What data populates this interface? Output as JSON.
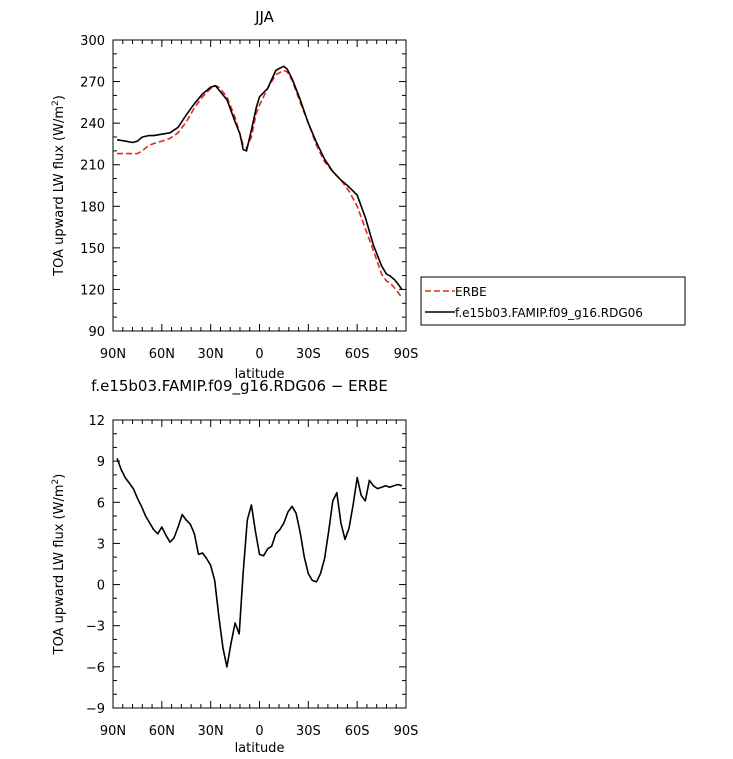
{
  "chart_data": [
    {
      "type": "line",
      "title": "JJA",
      "xlabel": "latitude",
      "ylabel_text": "TOA upward LW flux (W/m",
      "ylabel_sup": "2",
      "ylabel_close": ")",
      "xlim": [
        90,
        -90
      ],
      "ylim": [
        90,
        300
      ],
      "x_ticks": [
        90,
        60,
        30,
        0,
        -30,
        -60,
        -90
      ],
      "x_tick_labels": [
        "90N",
        "60N",
        "30N",
        "0",
        "30S",
        "60S",
        "90S"
      ],
      "y_ticks": [
        90,
        120,
        150,
        180,
        210,
        240,
        270,
        300
      ],
      "y_tick_labels": [
        "90",
        "120",
        "150",
        "180",
        "210",
        "240",
        "270",
        "300"
      ],
      "legend_position": "right",
      "series": [
        {
          "name": "ERBE",
          "color": "#e8261c",
          "dash": "dashed",
          "x": [
            87.5,
            80,
            75,
            72,
            68,
            63,
            60,
            55,
            50,
            45,
            40,
            35,
            30,
            27,
            25,
            20,
            15,
            12,
            10,
            8,
            5,
            2,
            0,
            -5,
            -10,
            -15,
            -17,
            -20,
            -25,
            -30,
            -35,
            -40,
            -45,
            -50,
            -55,
            -60,
            -65,
            -70,
            -73,
            -75,
            -78,
            -80,
            -83,
            -85,
            -87.5
          ],
          "y": [
            218,
            218,
            218,
            220,
            224,
            226,
            227,
            229,
            233,
            241,
            251,
            259,
            265,
            267,
            266,
            259,
            244,
            232,
            224,
            222,
            230,
            247,
            253,
            265,
            275,
            278,
            277,
            271,
            255,
            240,
            224,
            212,
            205,
            199,
            191,
            180,
            164,
            148,
            138,
            131,
            126,
            125,
            121,
            118,
            114
          ]
        },
        {
          "name": "f.e15b03.FAMIP.f09_g16.RDG06",
          "color": "#000000",
          "dash": "solid",
          "x": [
            87.5,
            82,
            78,
            75,
            72,
            68,
            65,
            60,
            55,
            50,
            45,
            40,
            35,
            30,
            27,
            25,
            20,
            15,
            12,
            10,
            8,
            5,
            2,
            0,
            -5,
            -10,
            -13,
            -15,
            -17,
            -20,
            -25,
            -30,
            -35,
            -40,
            -45,
            -50,
            -55,
            -60,
            -65,
            -70,
            -75,
            -78,
            -80,
            -83,
            -85,
            -87.5
          ],
          "y": [
            228,
            227,
            226,
            227,
            230,
            231,
            231,
            232,
            233,
            237,
            246,
            254,
            261,
            266,
            267,
            264,
            257,
            241,
            232,
            221,
            220,
            235,
            251,
            259,
            265,
            278,
            280,
            281,
            279,
            272,
            257,
            240,
            226,
            214,
            205,
            199,
            194,
            188,
            172,
            152,
            137,
            131,
            130,
            127,
            124,
            120
          ]
        }
      ]
    },
    {
      "type": "line",
      "title": "f.e15b03.FAMIP.f09_g16.RDG06 − ERBE",
      "xlabel": "latitude",
      "ylabel_text": "TOA upward LW flux (W/m",
      "ylabel_sup": "2",
      "ylabel_close": ")",
      "xlim": [
        90,
        -90
      ],
      "ylim": [
        -9,
        12
      ],
      "x_ticks": [
        90,
        60,
        30,
        0,
        -30,
        -60,
        -90
      ],
      "x_tick_labels": [
        "90N",
        "60N",
        "30N",
        "0",
        "30S",
        "60S",
        "90S"
      ],
      "y_ticks": [
        -9,
        -6,
        -3,
        0,
        3,
        6,
        9,
        12
      ],
      "y_tick_labels": [
        "−9",
        "−6",
        "−3",
        "0",
        "3",
        "6",
        "9",
        "12"
      ],
      "series": [
        {
          "color": "#000000",
          "dash": "solid",
          "x": [
            87.5,
            85,
            82.5,
            80,
            77.5,
            75,
            72.5,
            70,
            67.5,
            65,
            62.5,
            60,
            57.5,
            55,
            52.5,
            50,
            47.5,
            45,
            42.5,
            40,
            37.5,
            35,
            32.5,
            30,
            27.5,
            25,
            22.5,
            20,
            17.5,
            15,
            12.5,
            10,
            7.5,
            5,
            2.5,
            0,
            -2.5,
            -5,
            -7.5,
            -10,
            -12.5,
            -15,
            -17.5,
            -20,
            -22.5,
            -25,
            -27.5,
            -30,
            -32.5,
            -35,
            -37.5,
            -40,
            -42.5,
            -45,
            -47.5,
            -50,
            -52.5,
            -55,
            -57.5,
            -60,
            -62.5,
            -65,
            -67.5,
            -70,
            -72.5,
            -75,
            -77.5,
            -80,
            -82.5,
            -85,
            -87.5
          ],
          "y": [
            9.2,
            8.4,
            7.8,
            7.4,
            7.0,
            6.3,
            5.7,
            5.0,
            4.5,
            4.0,
            3.7,
            4.2,
            3.6,
            3.1,
            3.4,
            4.2,
            5.1,
            4.7,
            4.4,
            3.7,
            2.2,
            2.3,
            1.9,
            1.4,
            0.3,
            -2.3,
            -4.6,
            -6.0,
            -4.3,
            -2.8,
            -3.6,
            0.9,
            4.7,
            5.8,
            3.9,
            2.2,
            2.1,
            2.6,
            2.8,
            3.7,
            4.0,
            4.5,
            5.3,
            5.7,
            5.2,
            3.8,
            2.0,
            0.8,
            0.3,
            0.2,
            0.8,
            1.9,
            3.9,
            6.1,
            6.7,
            4.5,
            3.3,
            4.1,
            5.8,
            7.8,
            6.5,
            6.1,
            7.6,
            7.2,
            7.0,
            7.1,
            7.2,
            7.1,
            7.2,
            7.3,
            7.2
          ]
        }
      ]
    }
  ]
}
